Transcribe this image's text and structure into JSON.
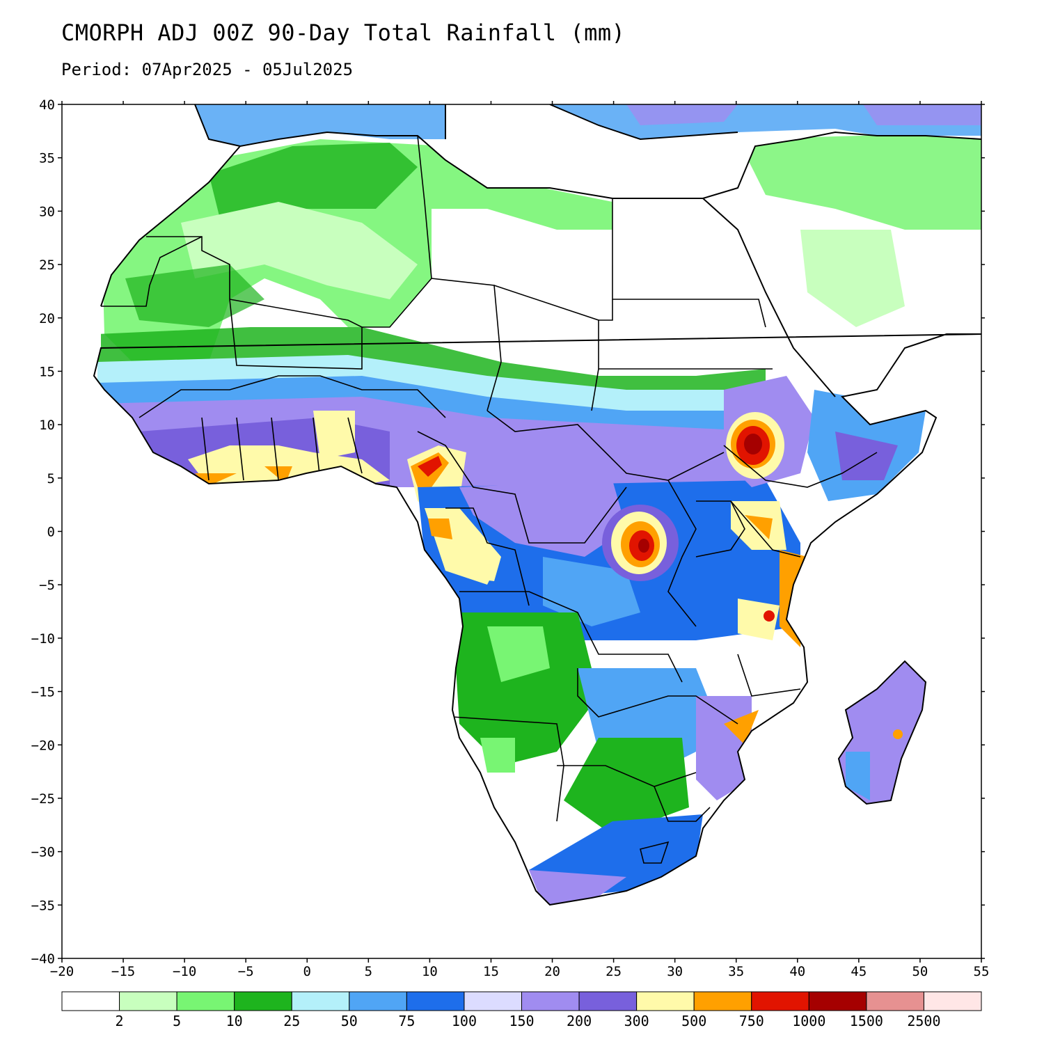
{
  "header": {
    "title": "CMORPH ADJ 00Z 90-Day Total Rainfall (mm)",
    "period": "Period: 07Apr2025 - 05Jul2025"
  },
  "axes": {
    "lon_ticks": [
      "−20",
      "−15",
      "−10",
      "−5",
      "0",
      "5",
      "10",
      "15",
      "20",
      "25",
      "30",
      "35",
      "40",
      "45",
      "50",
      "55"
    ],
    "lat_ticks": [
      "40",
      "35",
      "30",
      "25",
      "20",
      "15",
      "10",
      "5",
      "0",
      "−5",
      "−10",
      "−15",
      "−20",
      "−25",
      "−30",
      "−35",
      "−40"
    ],
    "lon_range": [
      -20,
      55
    ],
    "lat_range": [
      -40,
      40
    ]
  },
  "colorbar": {
    "colors": [
      "#ffffff",
      "#c8ffbe",
      "#78f573",
      "#1eb41e",
      "#b4f0fa",
      "#50a5f5",
      "#1e6eeb",
      "#dcdcff",
      "#a08cf0",
      "#7860dc",
      "#fffaaa",
      "#ffa000",
      "#e11400",
      "#a50000",
      "#e69191",
      "#ffe6e6"
    ],
    "labels": [
      "2",
      "5",
      "10",
      "25",
      "50",
      "75",
      "100",
      "150",
      "200",
      "300",
      "500",
      "750",
      "1000",
      "1500",
      "2500"
    ]
  }
}
